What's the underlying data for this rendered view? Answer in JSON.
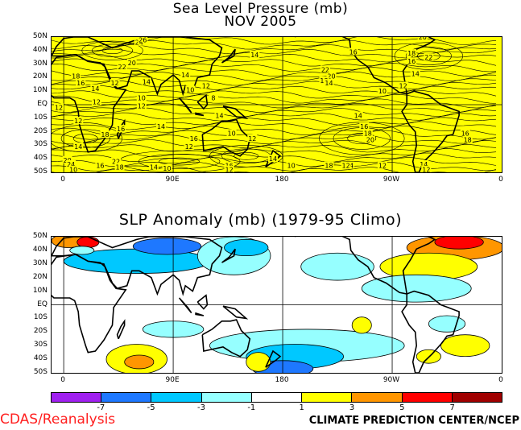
{
  "chart_data": [
    {
      "type": "contour",
      "title": "Sea Level Pressure (mb)",
      "subtitle": "NOV 2005",
      "y_tick_labels": [
        "50N",
        "40N",
        "30N",
        "20N",
        "10N",
        "EQ",
        "10S",
        "20S",
        "30S",
        "40S",
        "50S"
      ],
      "x_tick_labels": [
        "0",
        "90E",
        "180",
        "90W",
        "0"
      ],
      "contour_labels": [
        {
          "text": "24",
          "lon": 62,
          "lat": 46
        },
        {
          "text": "26",
          "lon": 65,
          "lat": 48
        },
        {
          "text": "22",
          "lon": 48,
          "lat": 28
        },
        {
          "text": "20",
          "lon": 56,
          "lat": 31
        },
        {
          "text": "18",
          "lon": 10,
          "lat": 21
        },
        {
          "text": "16",
          "lon": 14,
          "lat": 16
        },
        {
          "text": "14",
          "lon": 26,
          "lat": 12
        },
        {
          "text": "12",
          "lon": 27,
          "lat": 2
        },
        {
          "text": "12",
          "lon": -4,
          "lat": -2
        },
        {
          "text": "12",
          "lon": 12,
          "lat": -12
        },
        {
          "text": "16",
          "lon": 47,
          "lat": -18
        },
        {
          "text": "18",
          "lon": 34,
          "lat": -22
        },
        {
          "text": "14",
          "lon": 12,
          "lat": -31
        },
        {
          "text": "20",
          "lon": 3,
          "lat": -41
        },
        {
          "text": "24",
          "lon": 6,
          "lat": -44
        },
        {
          "text": "10",
          "lon": 8,
          "lat": -48
        },
        {
          "text": "16",
          "lon": 30,
          "lat": -45
        },
        {
          "text": "22",
          "lon": 43,
          "lat": -42
        },
        {
          "text": "18",
          "lon": 46,
          "lat": -46
        },
        {
          "text": "14",
          "lon": 74,
          "lat": -46
        },
        {
          "text": "10",
          "lon": 85,
          "lat": -47
        },
        {
          "text": "14",
          "lon": 80,
          "lat": -16
        },
        {
          "text": "14",
          "lon": 68,
          "lat": 17
        },
        {
          "text": "12",
          "lon": 42,
          "lat": 16
        },
        {
          "text": "10",
          "lon": 64,
          "lat": 5
        },
        {
          "text": "12",
          "lon": 64,
          "lat": -1
        },
        {
          "text": "14",
          "lon": 100,
          "lat": 22
        },
        {
          "text": "10",
          "lon": 104,
          "lat": 11
        },
        {
          "text": "12",
          "lon": 117,
          "lat": 14
        },
        {
          "text": "8",
          "lon": 123,
          "lat": 5
        },
        {
          "text": "14",
          "lon": 128,
          "lat": -8
        },
        {
          "text": "16",
          "lon": 107,
          "lat": -25
        },
        {
          "text": "12",
          "lon": 103,
          "lat": -31
        },
        {
          "text": "10",
          "lon": 138,
          "lat": -21
        },
        {
          "text": "12",
          "lon": 155,
          "lat": -25
        },
        {
          "text": "14",
          "lon": 157,
          "lat": 37
        },
        {
          "text": "16",
          "lon": 136,
          "lat": -45
        },
        {
          "text": "12",
          "lon": 136,
          "lat": -48
        },
        {
          "text": "14",
          "lon": 172,
          "lat": -40
        },
        {
          "text": "10",
          "lon": 187,
          "lat": -45
        },
        {
          "text": "18",
          "lon": 218,
          "lat": -45
        },
        {
          "text": "14",
          "lon": 235,
          "lat": -45
        },
        {
          "text": "12",
          "lon": 232,
          "lat": -45
        },
        {
          "text": "12",
          "lon": 262,
          "lat": -45
        },
        {
          "text": "14",
          "lon": 242,
          "lat": -8
        },
        {
          "text": "16",
          "lon": 247,
          "lat": -16
        },
        {
          "text": "18",
          "lon": 250,
          "lat": -21
        },
        {
          "text": "20",
          "lon": 252,
          "lat": -26
        },
        {
          "text": "10",
          "lon": 262,
          "lat": 10
        },
        {
          "text": "22",
          "lon": 215,
          "lat": 26
        },
        {
          "text": "20",
          "lon": 220,
          "lat": 21
        },
        {
          "text": "18",
          "lon": 214,
          "lat": 18
        },
        {
          "text": "14",
          "lon": 218,
          "lat": 16
        },
        {
          "text": "16",
          "lon": 238,
          "lat": 39
        },
        {
          "text": "18",
          "lon": 286,
          "lat": 38
        },
        {
          "text": "16",
          "lon": 286,
          "lat": 32
        },
        {
          "text": "22",
          "lon": 300,
          "lat": 35
        },
        {
          "text": "14",
          "lon": 289,
          "lat": 23
        },
        {
          "text": "12",
          "lon": 279,
          "lat": 14
        },
        {
          "text": "20",
          "lon": 295,
          "lat": 50
        },
        {
          "text": "16",
          "lon": 330,
          "lat": -21
        },
        {
          "text": "18",
          "lon": 332,
          "lat": -26
        },
        {
          "text": "14",
          "lon": 296,
          "lat": -44
        },
        {
          "text": "12",
          "lon": 298,
          "lat": -48
        }
      ],
      "colors": {
        "fill": "#ffff00",
        "lines": "#000000"
      }
    },
    {
      "type": "filled-contour",
      "title": "SLP Anomaly (mb) (1979-95 Climo)",
      "y_tick_labels": [
        "50N",
        "40N",
        "30N",
        "20N",
        "10N",
        "EQ",
        "10S",
        "20S",
        "30S",
        "40S",
        "50S"
      ],
      "x_tick_labels": [
        "0",
        "90E",
        "180",
        "90W",
        "0"
      ],
      "levels": [
        -7,
        -5,
        -3,
        -1,
        1,
        3,
        5,
        7
      ],
      "colorbar_colors": [
        "#a020f0",
        "#1e78ff",
        "#00c8ff",
        "#96ffff",
        "#ffffff",
        "#ffff00",
        "#ff9600",
        "#ff0000",
        "#a00000"
      ],
      "anomaly_regions": [
        {
          "value": 5,
          "lon": 4,
          "lat": 47,
          "rx": 14,
          "ry": 5
        },
        {
          "value": 7,
          "lon": 20,
          "lat": 46,
          "rx": 9,
          "ry": 4
        },
        {
          "value": -3,
          "lon": 60,
          "lat": 32,
          "rx": 60,
          "ry": 9
        },
        {
          "value": -5,
          "lon": 85,
          "lat": 43,
          "rx": 28,
          "ry": 6
        },
        {
          "value": -2,
          "lon": 140,
          "lat": 36,
          "rx": 30,
          "ry": 14
        },
        {
          "value": -4,
          "lon": 150,
          "lat": 42,
          "rx": 18,
          "ry": 6
        },
        {
          "value": -2,
          "lon": 225,
          "lat": 28,
          "rx": 30,
          "ry": 10
        },
        {
          "value": -2,
          "lon": 200,
          "lat": -30,
          "rx": 80,
          "ry": 12
        },
        {
          "value": -4,
          "lon": 190,
          "lat": -38,
          "rx": 40,
          "ry": 9
        },
        {
          "value": -6,
          "lon": 180,
          "lat": -47,
          "rx": 25,
          "ry": 6
        },
        {
          "value": 2,
          "lon": 160,
          "lat": -42,
          "rx": 10,
          "ry": 7
        },
        {
          "value": 2,
          "lon": 245,
          "lat": -15,
          "rx": 8,
          "ry": 6
        },
        {
          "value": 2,
          "lon": 330,
          "lat": -30,
          "rx": 20,
          "ry": 8
        },
        {
          "value": 2,
          "lon": 300,
          "lat": -38,
          "rx": 10,
          "ry": 5
        },
        {
          "value": -2,
          "lon": 315,
          "lat": -14,
          "rx": 15,
          "ry": 6
        },
        {
          "value": 2,
          "lon": 60,
          "lat": -40,
          "rx": 25,
          "ry": 11
        },
        {
          "value": 4,
          "lon": 62,
          "lat": -42,
          "rx": 12,
          "ry": 5
        },
        {
          "value": -2,
          "lon": 90,
          "lat": -18,
          "rx": 25,
          "ry": 6
        },
        {
          "value": 4,
          "lon": 322,
          "lat": 42,
          "rx": 40,
          "ry": 9
        },
        {
          "value": 6,
          "lon": 325,
          "lat": 46,
          "rx": 20,
          "ry": 5
        },
        {
          "value": 2,
          "lon": 300,
          "lat": 28,
          "rx": 40,
          "ry": 10
        },
        {
          "value": -2,
          "lon": 290,
          "lat": 12,
          "rx": 45,
          "ry": 10
        },
        {
          "value": -2,
          "lon": 15,
          "lat": 40,
          "rx": 10,
          "ry": 3
        }
      ]
    }
  ],
  "colorbar": {
    "labels": [
      "-7",
      "-5",
      "-3",
      "-1",
      "1",
      "3",
      "5",
      "7"
    ]
  },
  "footer": {
    "left": "CDAS/Reanalysis",
    "right": "CLIMATE PREDICTION CENTER/NCEP"
  }
}
